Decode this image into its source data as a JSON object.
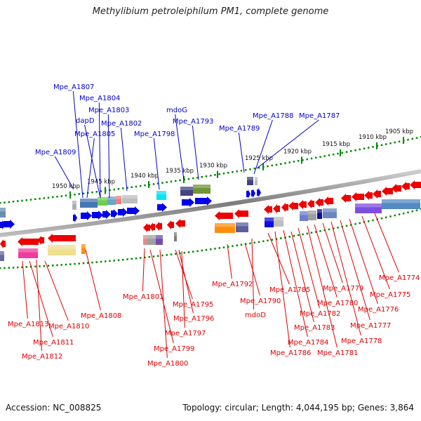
{
  "title": "Methylibium petroleiphilum PM1, complete genome",
  "footer": {
    "accession": "Accession: NC_008825",
    "summary": "Topology: circular; Length: 4,044,195 bp; Genes: 3,864"
  },
  "colors": {
    "forward_label": "#0000cc",
    "reverse_label": "#dd0000",
    "forward_arrow": "#0000ee",
    "reverse_arrow": "#ee0000",
    "backbone": "#8a8a8a",
    "ruler": "#008800"
  },
  "ruler_ticks": [
    {
      "label": "1950 kbp"
    },
    {
      "label": "1945 kbp"
    },
    {
      "label": "1940 kbp"
    },
    {
      "label": "1935 kbp"
    },
    {
      "label": "1930 kbp"
    },
    {
      "label": "1925 kbp"
    },
    {
      "label": "1920 kbp"
    },
    {
      "label": "1915 kbp"
    },
    {
      "label": "1910 kbp"
    },
    {
      "label": "1905 kbp"
    }
  ],
  "forward_genes": [
    "Mpe_A1807",
    "Mpe_A1804",
    "Mpe_A1803",
    "dapD",
    "Mpe_A1802",
    "Mpe_A1805",
    "Mpe_A1809",
    "Mpe_A1798",
    "mdoG",
    "Mpe_A1793",
    "Mpe_A1789",
    "Mpe_A1788",
    "Mpe_A1787"
  ],
  "reverse_genes": [
    "Mpe_A1813",
    "Mpe_A1811",
    "Mpe_A1812",
    "Mpe_A1810",
    "Mpe_A1808",
    "Mpe_A1801",
    "Mpe_A1799",
    "Mpe_A1800",
    "Mpe_A1795",
    "Mpe_A1796",
    "Mpe_A1797",
    "Mpe_A1792",
    "Mpe_A1790",
    "mdoD",
    "Mpe_A1785",
    "Mpe_A1786",
    "Mpe_A1784",
    "Mpe_A1783",
    "Mpe_A1782",
    "Mpe_A1781",
    "Mpe_A1780",
    "Mpe_A1779",
    "Mpe_A1778",
    "Mpe_A1777",
    "Mpe_A1776",
    "Mpe_A1775",
    "Mpe_A1774"
  ]
}
